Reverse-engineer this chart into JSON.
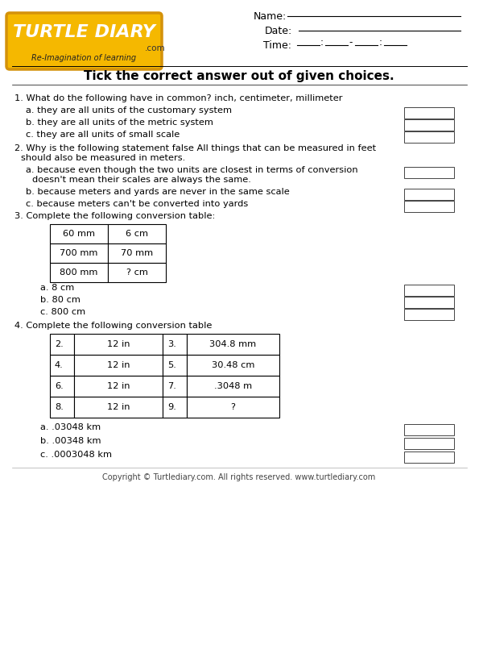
{
  "bg_color": "#ffffff",
  "title": "Tick the correct answer out of given choices.",
  "footer": "Copyright © Turtlediary.com. All rights reserved. www.turtlediary.com",
  "table1_rows": [
    [
      "60 mm",
      "6 cm"
    ],
    [
      "700 mm",
      "70 mm"
    ],
    [
      "800 mm",
      "? cm"
    ]
  ],
  "table2_rows": [
    [
      "2.",
      "12 in",
      "3.",
      "304.8 mm"
    ],
    [
      "4.",
      "12 in",
      "5.",
      "30.48 cm"
    ],
    [
      "6.",
      "12 in",
      "7.",
      ".3048 m"
    ],
    [
      "8.",
      "12 in",
      "9.",
      "?"
    ]
  ]
}
